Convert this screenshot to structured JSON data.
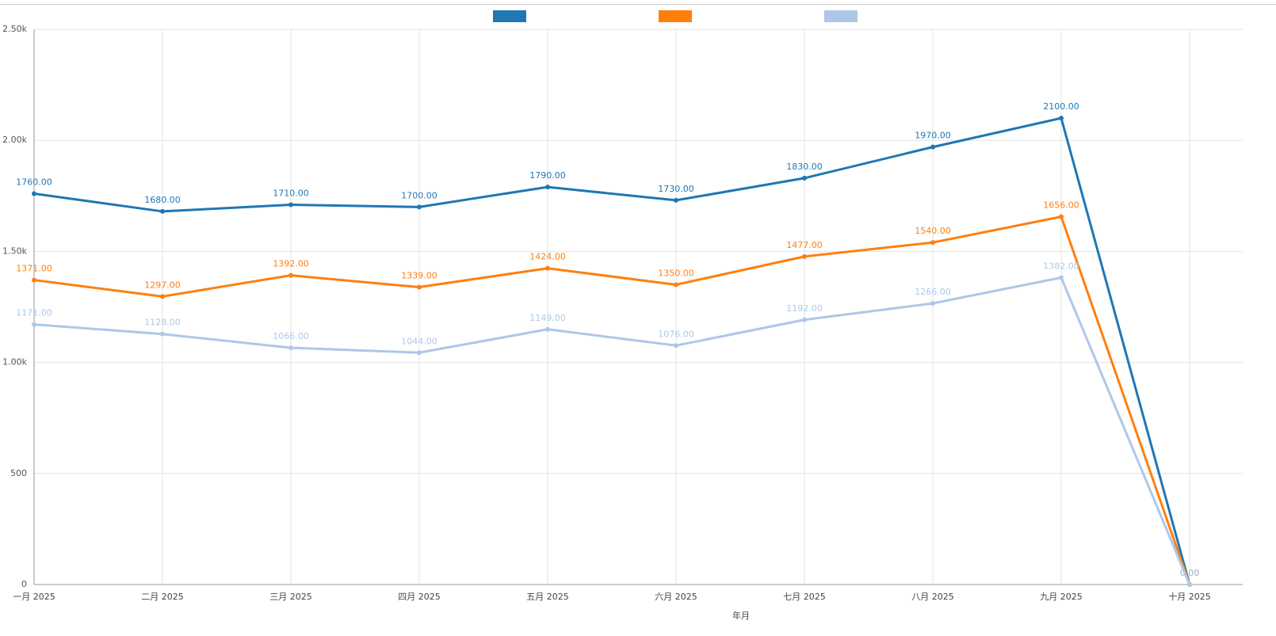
{
  "chart_data": {
    "type": "line",
    "x_label": "年月",
    "categories": [
      "一月 2025",
      "二月 2025",
      "三月 2025",
      "四月 2025",
      "五月 2025",
      "六月 2025",
      "七月 2025",
      "八月 2025",
      "九月 2025",
      "十月 2025"
    ],
    "series": [
      {
        "color": "#1f77b4",
        "values": [
          1760,
          1680,
          1710,
          1700,
          1790,
          1730,
          1830,
          1970,
          2100,
          0
        ],
        "value_labels": [
          "1760.00",
          "1680.00",
          "1710.00",
          "1700.00",
          "1790.00",
          "1730.00",
          "1830.00",
          "1970.00",
          "2100.00",
          "0.00"
        ]
      },
      {
        "color": "#ff7f0e",
        "values": [
          1371,
          1297,
          1392,
          1339,
          1424,
          1350,
          1477,
          1540,
          1656,
          0
        ],
        "value_labels": [
          "1371.00",
          "1297.00",
          "1392.00",
          "1339.00",
          "1424.00",
          "1350.00",
          "1477.00",
          "1540.00",
          "1656.00",
          "0.00"
        ]
      },
      {
        "color": "#aec7e8",
        "values": [
          1171,
          1128,
          1066,
          1044,
          1149,
          1076,
          1192,
          1266,
          1382,
          0
        ],
        "value_labels": [
          "1171.00",
          "1128.00",
          "1066.00",
          "1044.00",
          "1149.00",
          "1076.00",
          "1192.00",
          "1266.00",
          "1382.00",
          "0.00"
        ]
      }
    ],
    "ylim": [
      0,
      2500
    ],
    "yticks": [
      0,
      500,
      {
        "value": 1000,
        "label": "1.00k"
      },
      {
        "value": 1500,
        "label": "1.50k"
      },
      {
        "value": 2000,
        "label": "2.00k"
      },
      {
        "value": 2500,
        "label": "2.50k"
      }
    ],
    "grid": true
  }
}
